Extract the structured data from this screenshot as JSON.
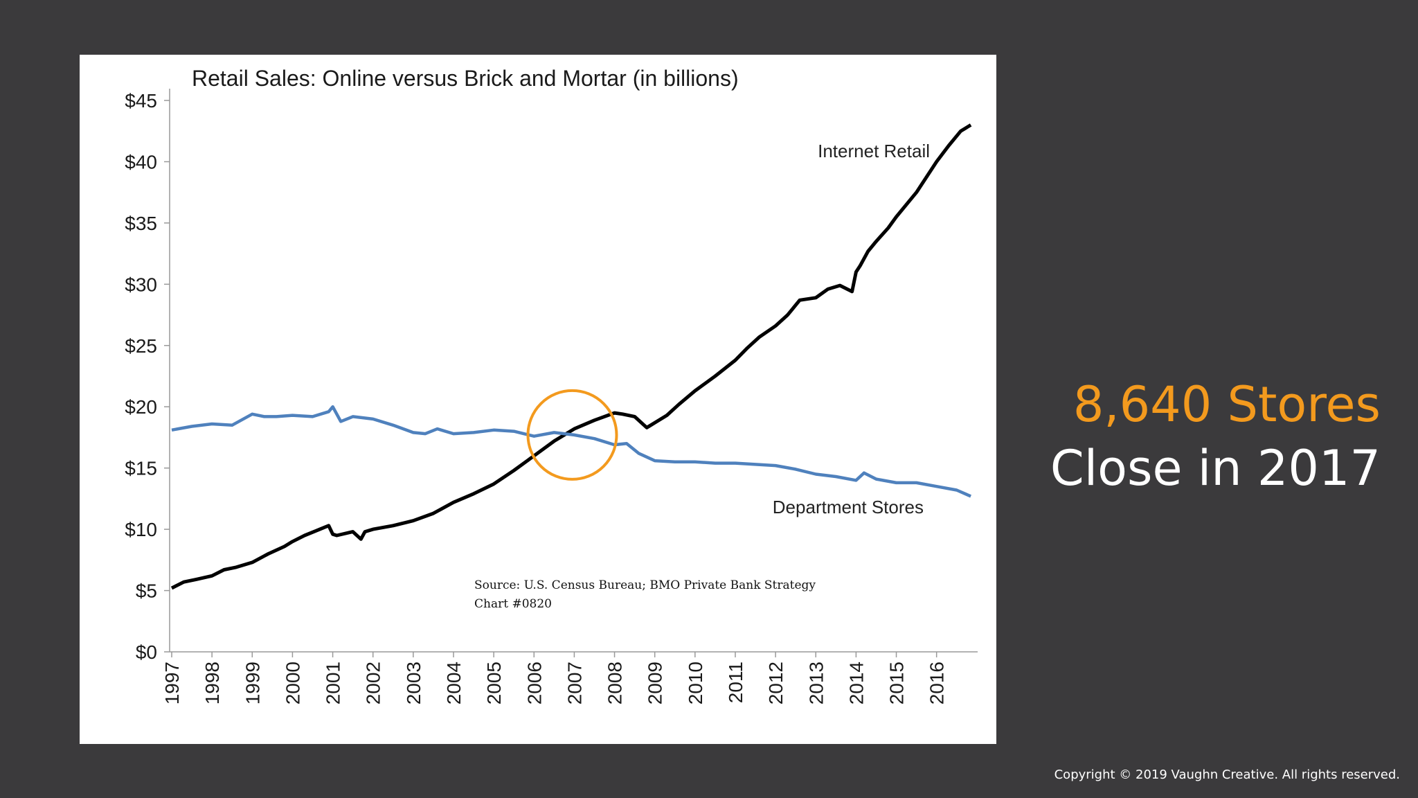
{
  "colors": {
    "background": "#3b3a3c",
    "internet_line": "#000000",
    "department_line": "#4f81bd",
    "highlight_circle": "#f39a1e",
    "headline_accent": "#f39a1e",
    "headline_main": "#ffffff"
  },
  "headline": {
    "line1": "8,640 Stores",
    "line2": "Close in 2017"
  },
  "copyright": "Copyright © 2019 Vaughn Creative. All rights reserved.",
  "chart_data": {
    "type": "line",
    "title": "Retail Sales: Online versus Brick and Mortar (in billions)",
    "xlabel": "",
    "ylabel": "",
    "ylim": [
      0,
      45
    ],
    "xlim": [
      1997,
      2016.9
    ],
    "ytick_labels": [
      "$0",
      "$5",
      "$10",
      "$15",
      "$20",
      "$25",
      "$30",
      "$35",
      "$40",
      "$45"
    ],
    "ytick_values": [
      0,
      5,
      10,
      15,
      20,
      25,
      30,
      35,
      40,
      45
    ],
    "xtick_labels": [
      "1997",
      "1998",
      "1999",
      "2000",
      "2001",
      "2002",
      "2003",
      "2004",
      "2005",
      "2006",
      "2007",
      "2008",
      "2009",
      "2010",
      "2011",
      "2012",
      "2013",
      "2014",
      "2015",
      "2016"
    ],
    "series": [
      {
        "name": "Internet Retail",
        "label": "Internet Retail",
        "x": [
          1997.0,
          1997.3,
          1997.6,
          1998.0,
          1998.3,
          1998.6,
          1999.0,
          1999.4,
          1999.8,
          2000.0,
          2000.3,
          2000.6,
          2000.9,
          2001.0,
          2001.1,
          2001.5,
          2001.7,
          2001.8,
          2002.0,
          2002.5,
          2003.0,
          2003.5,
          2004.0,
          2004.5,
          2005.0,
          2005.5,
          2006.0,
          2006.5,
          2007.0,
          2007.5,
          2008.0,
          2008.2,
          2008.5,
          2008.8,
          2008.9,
          2009.0,
          2009.3,
          2009.6,
          2010.0,
          2010.5,
          2011.0,
          2011.3,
          2011.6,
          2012.0,
          2012.3,
          2012.6,
          2013.0,
          2013.3,
          2013.6,
          2013.9,
          2014.0,
          2014.1,
          2014.3,
          2014.5,
          2014.8,
          2015.0,
          2015.5,
          2016.0,
          2016.3,
          2016.6,
          2016.85
        ],
        "values": [
          5.2,
          5.7,
          5.9,
          6.2,
          6.7,
          6.9,
          7.3,
          8.0,
          8.6,
          9.0,
          9.5,
          9.9,
          10.3,
          9.6,
          9.5,
          9.8,
          9.2,
          9.8,
          10.0,
          10.3,
          10.7,
          11.3,
          12.2,
          12.9,
          13.7,
          14.8,
          16.0,
          17.2,
          18.2,
          18.9,
          19.5,
          19.4,
          19.2,
          18.3,
          18.5,
          18.7,
          19.3,
          20.2,
          21.3,
          22.5,
          23.8,
          24.8,
          25.7,
          26.6,
          27.5,
          28.7,
          28.9,
          29.6,
          29.9,
          29.4,
          31.0,
          31.5,
          32.7,
          33.5,
          34.6,
          35.5,
          37.5,
          40.0,
          41.3,
          42.5,
          43.0
        ]
      },
      {
        "name": "Department Stores",
        "label": "Department Stores",
        "x": [
          1997.0,
          1997.5,
          1998.0,
          1998.5,
          1999.0,
          1999.3,
          1999.6,
          2000.0,
          2000.5,
          2000.9,
          2001.0,
          2001.2,
          2001.5,
          2002.0,
          2002.5,
          2003.0,
          2003.3,
          2003.6,
          2004.0,
          2004.5,
          2005.0,
          2005.5,
          2006.0,
          2006.5,
          2007.0,
          2007.5,
          2008.0,
          2008.3,
          2008.6,
          2009.0,
          2009.5,
          2010.0,
          2010.5,
          2011.0,
          2011.5,
          2012.0,
          2012.5,
          2013.0,
          2013.5,
          2014.0,
          2014.2,
          2014.5,
          2015.0,
          2015.5,
          2016.0,
          2016.5,
          2016.85
        ],
        "values": [
          18.1,
          18.4,
          18.6,
          18.5,
          19.4,
          19.2,
          19.2,
          19.3,
          19.2,
          19.6,
          20.0,
          18.8,
          19.2,
          19.0,
          18.5,
          17.9,
          17.8,
          18.2,
          17.8,
          17.9,
          18.1,
          18.0,
          17.6,
          17.9,
          17.7,
          17.4,
          16.9,
          17.0,
          16.2,
          15.6,
          15.5,
          15.5,
          15.4,
          15.4,
          15.3,
          15.2,
          14.9,
          14.5,
          14.3,
          14.0,
          14.6,
          14.1,
          13.8,
          13.8,
          13.5,
          13.2,
          12.7
        ]
      }
    ],
    "annotations": [
      {
        "text": "Source: U.S. Census Bureau; BMO Private Bank Strategy"
      },
      {
        "text": "Chart #0820"
      }
    ],
    "highlight": {
      "shape": "circle",
      "center_x": 2006.95,
      "center_y": 17.7,
      "description": "crossover of Internet Retail and Department Stores"
    },
    "grid": false,
    "legend": "inline labels"
  }
}
